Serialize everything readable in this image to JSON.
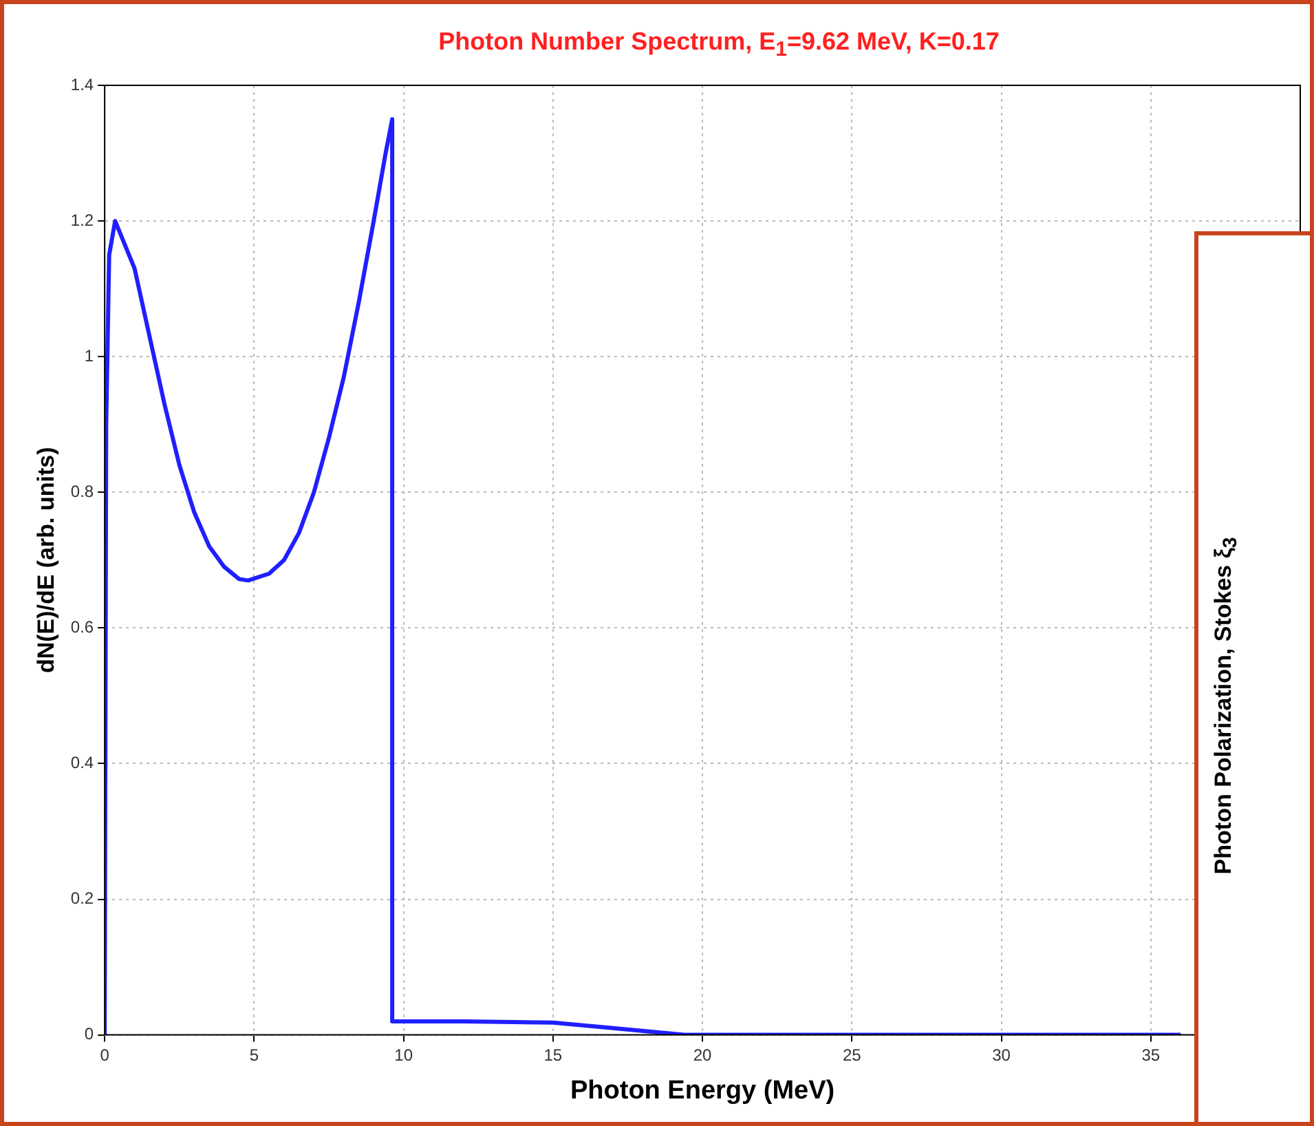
{
  "chart_data": [
    {
      "type": "line",
      "title": "Photon Number Spectrum, E$_{1}$=9.62 MeV, K=0.17",
      "xlabel": "Photon Energy (MeV)",
      "ylabel": "dN(E)/dE (arb. units)",
      "series": [
        {
          "color": "#1f1fff",
          "x": [
            0,
            0.05,
            0.15,
            0.35,
            1,
            1.5,
            2,
            2.5,
            3,
            3.5,
            4,
            4.5,
            4.8,
            5.5,
            6,
            6.5,
            7,
            7.5,
            8,
            8.5,
            9,
            9.4,
            9.62,
            9.62,
            12,
            15,
            17,
            19.4,
            36
          ],
          "values": [
            0,
            0.9,
            1.15,
            1.2,
            1.13,
            1.03,
            0.93,
            0.84,
            0.77,
            0.72,
            0.69,
            0.672,
            0.67,
            0.68,
            0.7,
            0.74,
            0.8,
            0.88,
            0.97,
            1.08,
            1.2,
            1.3,
            1.35,
            0.02,
            0.02,
            0.018,
            0.01,
            0,
            0
          ]
        }
      ],
      "xlim": [
        0,
        40
      ],
      "xticks": [
        0,
        5,
        10,
        15,
        20,
        25,
        30,
        35
      ],
      "ylim": [
        0,
        1.4
      ],
      "yticks": [
        0,
        0.2,
        0.4,
        0.6,
        0.8,
        1,
        1.2,
        1.4
      ],
      "grid": true,
      "legend": false,
      "marker": "none",
      "line_style": "solid"
    },
    {
      "type": "other",
      "ylabel": "Photon Polarization, Stokes ξ$_{3}$"
    }
  ]
}
